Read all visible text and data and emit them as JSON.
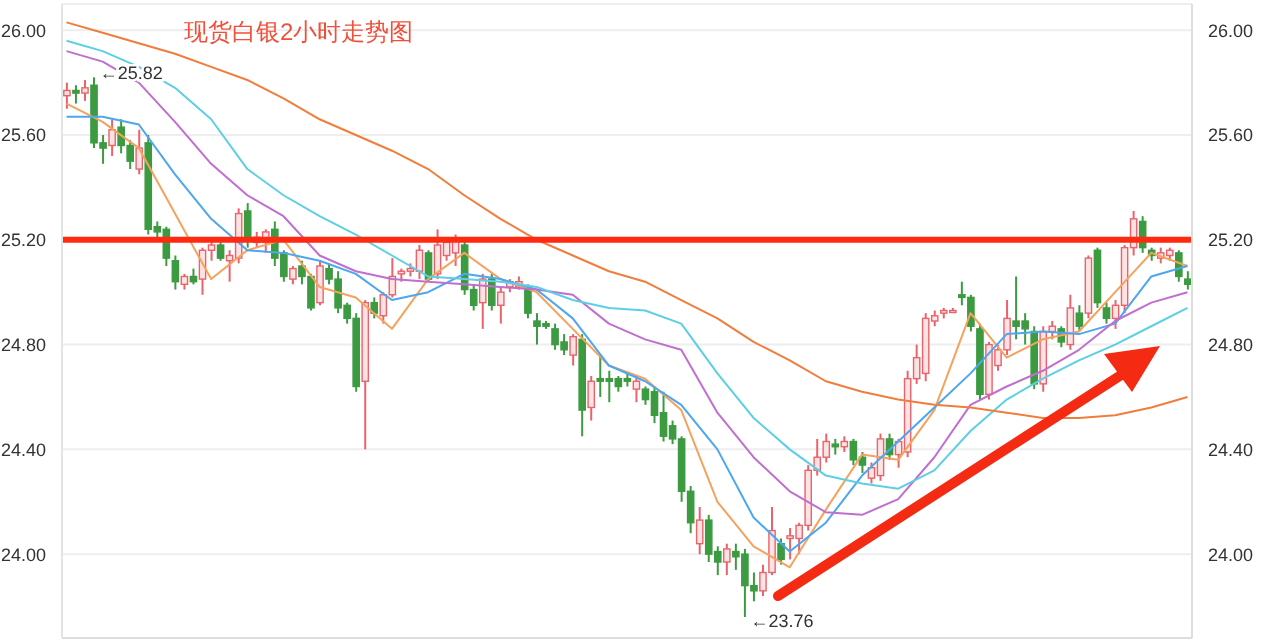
{
  "chart_data": {
    "type": "candlestick",
    "title": "现货白银2小时走势图",
    "categories": [
      null,
      null,
      null,
      null,
      null,
      null,
      null,
      null,
      null,
      null,
      null,
      null,
      null,
      null,
      null,
      null,
      null,
      null,
      null,
      null,
      null,
      null,
      null,
      null,
      null,
      null,
      null,
      null,
      null,
      null,
      null,
      null,
      null,
      null,
      null,
      null,
      null,
      null,
      null,
      null,
      null,
      null,
      null,
      null,
      null,
      null,
      null,
      null,
      null,
      null,
      null,
      null,
      null,
      null,
      null,
      null,
      null,
      null,
      null,
      null,
      null,
      null,
      null,
      null,
      null,
      null,
      null,
      null,
      null,
      null,
      null,
      null,
      null,
      null,
      null,
      null,
      null,
      null,
      null,
      null,
      null,
      null,
      null,
      null,
      null,
      null,
      null,
      null,
      null,
      null,
      null,
      null,
      null,
      null,
      null,
      null,
      null,
      null,
      null,
      null,
      null,
      null,
      null,
      null,
      null,
      null,
      null,
      null,
      null,
      null,
      null,
      null,
      null,
      null,
      null,
      null,
      null,
      null,
      null,
      null,
      null,
      null,
      null,
      null,
      null
    ],
    "ohlc": [
      [
        25.75,
        25.8,
        25.7,
        25.77
      ],
      [
        25.77,
        25.79,
        25.72,
        25.76
      ],
      [
        25.76,
        25.81,
        25.73,
        25.78
      ],
      [
        25.79,
        25.82,
        25.55,
        25.57
      ],
      [
        25.57,
        25.6,
        25.49,
        25.55
      ],
      [
        25.56,
        25.66,
        25.52,
        25.62
      ],
      [
        25.63,
        25.66,
        25.53,
        25.56
      ],
      [
        25.56,
        25.58,
        25.47,
        25.5
      ],
      [
        25.47,
        25.62,
        25.45,
        25.55
      ],
      [
        25.57,
        25.6,
        25.22,
        25.24
      ],
      [
        25.25,
        25.27,
        25.2,
        25.23
      ],
      [
        25.24,
        25.25,
        25.1,
        25.13
      ],
      [
        25.12,
        25.14,
        25.01,
        25.04
      ],
      [
        25.03,
        25.07,
        25.01,
        25.06
      ],
      [
        25.06,
        25.09,
        25.03,
        25.04
      ],
      [
        25.05,
        25.17,
        24.99,
        25.16
      ],
      [
        25.16,
        25.21,
        25.12,
        25.18
      ],
      [
        25.18,
        25.19,
        25.12,
        25.13
      ],
      [
        25.12,
        25.16,
        25.04,
        25.14
      ],
      [
        25.13,
        25.32,
        25.11,
        25.3
      ],
      [
        25.31,
        25.34,
        25.17,
        25.21
      ],
      [
        25.19,
        25.23,
        25.17,
        25.21
      ],
      [
        25.19,
        25.24,
        25.15,
        25.23
      ],
      [
        25.24,
        25.27,
        25.1,
        25.13
      ],
      [
        25.15,
        25.16,
        25.04,
        25.06
      ],
      [
        25.05,
        25.1,
        25.03,
        25.09
      ],
      [
        25.1,
        25.12,
        25.03,
        25.06
      ],
      [
        25.06,
        25.07,
        24.93,
        24.94
      ],
      [
        24.96,
        25.12,
        24.95,
        25.1
      ],
      [
        25.09,
        25.11,
        25.03,
        25.05
      ],
      [
        25.05,
        25.08,
        24.92,
        24.94
      ],
      [
        24.95,
        24.96,
        24.88,
        24.9
      ],
      [
        24.9,
        24.92,
        24.62,
        24.64
      ],
      [
        24.66,
        24.97,
        24.4,
        24.96
      ],
      [
        24.96,
        24.98,
        24.9,
        24.92
      ],
      [
        24.91,
        25.0,
        24.88,
        24.99
      ],
      [
        24.99,
        25.13,
        24.98,
        25.06
      ],
      [
        25.07,
        25.09,
        25.04,
        25.08
      ],
      [
        25.08,
        25.11,
        25.06,
        25.09
      ],
      [
        25.08,
        25.18,
        25.05,
        25.16
      ],
      [
        25.15,
        25.16,
        25.04,
        25.05
      ],
      [
        25.07,
        25.24,
        25.05,
        25.18
      ],
      [
        25.14,
        25.2,
        25.12,
        25.19
      ],
      [
        25.15,
        25.22,
        25.1,
        25.2
      ],
      [
        25.18,
        25.2,
        24.99,
        25.01
      ],
      [
        25.01,
        25.03,
        24.93,
        24.95
      ],
      [
        24.96,
        25.07,
        24.86,
        25.05
      ],
      [
        25.05,
        25.07,
        24.93,
        24.95
      ],
      [
        24.95,
        25.02,
        24.88,
        25.0
      ],
      [
        25.02,
        25.05,
        25.0,
        25.04
      ],
      [
        25.02,
        25.06,
        25.01,
        25.04
      ],
      [
        25.01,
        25.03,
        24.9,
        24.92
      ],
      [
        24.89,
        24.92,
        24.8,
        24.87
      ],
      [
        24.88,
        24.89,
        24.86,
        24.87
      ],
      [
        24.86,
        24.88,
        24.78,
        24.8
      ],
      [
        24.81,
        24.84,
        24.76,
        24.78
      ],
      [
        24.76,
        24.84,
        24.72,
        24.83
      ],
      [
        24.82,
        24.84,
        24.45,
        24.55
      ],
      [
        24.56,
        24.68,
        24.51,
        24.66
      ],
      [
        24.67,
        24.76,
        24.6,
        24.66
      ],
      [
        24.67,
        24.7,
        24.58,
        24.66
      ],
      [
        24.67,
        24.68,
        24.62,
        24.64
      ],
      [
        24.67,
        24.69,
        24.64,
        24.66
      ],
      [
        24.63,
        24.68,
        24.58,
        24.66
      ],
      [
        24.63,
        24.64,
        24.57,
        24.59
      ],
      [
        24.62,
        24.64,
        24.5,
        24.53
      ],
      [
        24.54,
        24.62,
        24.43,
        24.45
      ],
      [
        24.49,
        24.51,
        24.42,
        24.44
      ],
      [
        24.44,
        24.45,
        24.2,
        24.24
      ],
      [
        24.24,
        24.26,
        24.08,
        24.12
      ],
      [
        24.04,
        24.18,
        24.0,
        24.13
      ],
      [
        24.13,
        24.15,
        23.97,
        24.0
      ],
      [
        24.01,
        24.03,
        23.92,
        23.97
      ],
      [
        23.97,
        24.04,
        23.92,
        24.02
      ],
      [
        24.01,
        24.04,
        23.94,
        23.99
      ],
      [
        24.0,
        24.02,
        23.76,
        23.88
      ],
      [
        23.88,
        23.93,
        23.82,
        23.86
      ],
      [
        23.86,
        23.96,
        23.84,
        23.93
      ],
      [
        23.93,
        24.18,
        23.92,
        24.09
      ],
      [
        24.04,
        24.06,
        23.96,
        23.98
      ],
      [
        24.06,
        24.1,
        23.98,
        24.07
      ],
      [
        24.06,
        24.12,
        24.0,
        24.11
      ],
      [
        24.11,
        24.34,
        24.09,
        24.32
      ],
      [
        24.32,
        24.44,
        24.3,
        24.37
      ],
      [
        24.37,
        24.46,
        24.35,
        24.43
      ],
      [
        24.42,
        24.44,
        24.38,
        24.41
      ],
      [
        24.41,
        24.45,
        24.39,
        24.43
      ],
      [
        24.43,
        24.44,
        24.34,
        24.36
      ],
      [
        24.37,
        24.39,
        24.31,
        24.34
      ],
      [
        24.29,
        24.35,
        24.27,
        24.33
      ],
      [
        24.3,
        24.46,
        24.28,
        24.44
      ],
      [
        24.44,
        24.46,
        24.36,
        24.38
      ],
      [
        24.38,
        24.44,
        24.33,
        24.43
      ],
      [
        24.39,
        24.7,
        24.37,
        24.67
      ],
      [
        24.67,
        24.8,
        24.65,
        24.75
      ],
      [
        24.69,
        24.92,
        24.66,
        24.9
      ],
      [
        24.89,
        24.93,
        24.87,
        24.91
      ],
      [
        24.92,
        24.94,
        24.9,
        24.93
      ],
      [
        24.93,
        24.94,
        24.93,
        24.93
      ],
      [
        24.99,
        25.04,
        24.95,
        24.98
      ],
      [
        24.98,
        24.99,
        24.85,
        24.87
      ],
      [
        24.86,
        24.88,
        24.59,
        24.61
      ],
      [
        24.61,
        24.81,
        24.59,
        24.8
      ],
      [
        24.72,
        24.8,
        24.7,
        24.78
      ],
      [
        24.78,
        24.97,
        24.76,
        24.9
      ],
      [
        24.89,
        25.06,
        24.82,
        24.87
      ],
      [
        24.89,
        24.92,
        24.8,
        24.86
      ],
      [
        24.85,
        24.87,
        24.63,
        24.65
      ],
      [
        24.65,
        24.87,
        24.62,
        24.85
      ],
      [
        24.85,
        24.89,
        24.82,
        24.87
      ],
      [
        24.86,
        24.87,
        24.79,
        24.81
      ],
      [
        24.8,
        24.99,
        24.78,
        24.94
      ],
      [
        24.92,
        24.95,
        24.85,
        24.87
      ],
      [
        24.92,
        25.14,
        24.9,
        25.13
      ],
      [
        25.16,
        25.17,
        24.94,
        24.96
      ],
      [
        24.94,
        24.96,
        24.88,
        24.9
      ],
      [
        24.9,
        24.97,
        24.86,
        24.95
      ],
      [
        24.95,
        25.18,
        24.92,
        25.17
      ],
      [
        25.17,
        25.31,
        25.14,
        25.28
      ],
      [
        25.27,
        25.29,
        25.15,
        25.17
      ],
      [
        25.16,
        25.17,
        25.12,
        25.14
      ],
      [
        25.13,
        25.17,
        25.11,
        25.15
      ],
      [
        25.14,
        25.17,
        25.12,
        25.16
      ],
      [
        25.15,
        25.16,
        25.04,
        25.06
      ],
      [
        25.05,
        25.08,
        25.01,
        25.03
      ]
    ],
    "series": [
      {
        "type": "line",
        "color": "#f5a25d",
        "values": [
          25.72,
          null,
          null,
          null,
          25.65,
          null,
          null,
          null,
          25.55,
          null,
          null,
          null,
          25.3,
          null,
          null,
          null,
          25.05,
          null,
          null,
          null,
          25.16,
          null,
          null,
          null,
          25.2,
          null,
          null,
          null,
          25.02,
          null,
          null,
          null,
          24.98,
          null,
          null,
          null,
          24.86,
          null,
          null,
          null,
          25.05,
          null,
          null,
          null,
          25.15,
          null,
          null,
          null,
          25.05,
          null,
          null,
          null,
          25.0,
          null,
          null,
          null,
          24.86,
          null,
          null,
          null,
          24.72,
          null,
          null,
          null,
          24.67,
          null,
          null,
          null,
          24.55,
          null,
          null,
          null,
          24.2,
          null,
          null,
          null,
          24.03,
          null,
          null,
          null,
          23.95,
          null,
          null,
          null,
          24.17,
          null,
          null,
          null,
          24.38,
          null,
          null,
          null,
          24.36,
          null,
          null,
          null,
          24.55,
          null,
          null,
          null,
          24.92,
          null,
          null,
          null,
          24.75,
          null,
          null,
          null,
          24.82,
          null,
          null,
          null,
          24.85,
          null,
          null,
          null,
          25.0,
          null,
          null,
          null,
          25.15,
          null,
          null,
          null,
          25.1
        ]
      },
      {
        "type": "line",
        "color": "#4da6f0",
        "values": [
          25.67,
          null,
          null,
          null,
          25.67,
          null,
          null,
          null,
          25.64,
          null,
          null,
          null,
          25.45,
          null,
          null,
          null,
          25.28,
          null,
          null,
          null,
          25.16,
          null,
          null,
          null,
          25.15,
          null,
          null,
          null,
          25.12,
          null,
          null,
          null,
          25.07,
          null,
          null,
          null,
          24.97,
          null,
          null,
          null,
          25.0,
          null,
          null,
          null,
          25.07,
          null,
          null,
          null,
          25.05,
          null,
          null,
          null,
          25.01,
          null,
          null,
          null,
          24.9,
          null,
          null,
          null,
          24.72,
          null,
          null,
          null,
          24.66,
          null,
          null,
          null,
          24.57,
          null,
          null,
          null,
          24.4,
          null,
          null,
          null,
          24.14,
          null,
          null,
          null,
          24.01,
          null,
          null,
          null,
          24.12,
          null,
          null,
          null,
          24.3,
          null,
          null,
          null,
          24.43,
          null,
          null,
          null,
          24.56,
          null,
          null,
          null,
          24.69,
          null,
          null,
          null,
          24.84,
          null,
          null,
          null,
          24.85,
          null,
          null,
          null,
          24.84,
          null,
          null,
          null,
          24.88,
          null,
          null,
          null,
          25.06,
          null,
          null,
          null,
          25.1
        ]
      },
      {
        "type": "line",
        "color": "#c06ed0",
        "values": [
          25.92,
          null,
          null,
          null,
          25.88,
          null,
          null,
          null,
          25.8,
          null,
          null,
          null,
          25.65,
          null,
          null,
          null,
          25.49,
          null,
          null,
          null,
          25.37,
          null,
          null,
          null,
          25.29,
          null,
          null,
          null,
          25.14,
          null,
          null,
          null,
          25.08,
          null,
          null,
          null,
          25.05,
          null,
          null,
          null,
          25.04,
          null,
          null,
          null,
          25.03,
          null,
          null,
          null,
          25.02,
          null,
          null,
          null,
          25.01,
          null,
          null,
          null,
          24.99,
          null,
          null,
          null,
          24.88,
          null,
          null,
          null,
          24.82,
          null,
          null,
          null,
          24.78,
          null,
          null,
          null,
          24.54,
          null,
          null,
          null,
          24.37,
          null,
          null,
          null,
          24.24,
          null,
          null,
          null,
          24.16,
          null,
          null,
          null,
          24.15,
          null,
          null,
          null,
          24.21,
          null,
          null,
          null,
          24.37,
          null,
          null,
          null,
          24.57,
          null,
          null,
          null,
          24.64,
          null,
          null,
          null,
          24.7,
          null,
          null,
          null,
          24.78,
          null,
          null,
          null,
          24.89,
          null,
          null,
          null,
          24.96,
          null,
          null,
          null,
          25.0
        ]
      },
      {
        "type": "line",
        "color": "#5ccfe6",
        "values": [
          25.96,
          null,
          null,
          null,
          25.92,
          null,
          null,
          null,
          25.86,
          null,
          null,
          null,
          25.78,
          null,
          null,
          null,
          25.66,
          null,
          null,
          null,
          25.47,
          null,
          null,
          null,
          25.37,
          null,
          null,
          null,
          25.29,
          null,
          null,
          null,
          25.22,
          null,
          null,
          null,
          25.14,
          null,
          null,
          null,
          25.06,
          null,
          null,
          null,
          25.05,
          null,
          null,
          null,
          25.04,
          null,
          null,
          null,
          25.02,
          null,
          null,
          null,
          24.97,
          null,
          null,
          null,
          24.94,
          null,
          null,
          null,
          24.93,
          null,
          null,
          null,
          24.88,
          null,
          null,
          null,
          24.69,
          null,
          null,
          null,
          24.52,
          null,
          null,
          null,
          24.4,
          null,
          null,
          null,
          24.3,
          null,
          null,
          null,
          24.27,
          null,
          null,
          null,
          24.25,
          null,
          null,
          null,
          24.32,
          null,
          null,
          null,
          24.47,
          null,
          null,
          null,
          24.59,
          null,
          null,
          null,
          24.67,
          null,
          null,
          null,
          24.74,
          null,
          null,
          null,
          24.8,
          null,
          null,
          null,
          24.87,
          null,
          null,
          null,
          24.94
        ]
      },
      {
        "type": "line",
        "color": "#f07d3c",
        "values": [
          26.03,
          null,
          null,
          null,
          25.99,
          null,
          null,
          null,
          25.95,
          null,
          null,
          null,
          25.91,
          null,
          null,
          null,
          25.86,
          null,
          null,
          null,
          25.81,
          null,
          null,
          null,
          25.74,
          null,
          null,
          null,
          25.66,
          null,
          null,
          null,
          25.6,
          null,
          null,
          null,
          25.54,
          null,
          null,
          null,
          25.47,
          null,
          null,
          null,
          25.37,
          null,
          null,
          null,
          25.28,
          null,
          null,
          null,
          25.2,
          null,
          null,
          null,
          25.14,
          null,
          null,
          null,
          25.08,
          null,
          null,
          null,
          25.04,
          null,
          null,
          null,
          24.97,
          null,
          null,
          null,
          24.9,
          null,
          null,
          null,
          24.81,
          null,
          null,
          null,
          24.74,
          null,
          null,
          null,
          24.66,
          null,
          null,
          null,
          24.62,
          null,
          null,
          null,
          24.59,
          null,
          null,
          null,
          24.57,
          null,
          null,
          null,
          24.56,
          null,
          null,
          null,
          24.54,
          null,
          null,
          null,
          24.52,
          null,
          null,
          null,
          24.52,
          null,
          null,
          null,
          24.53,
          null,
          null,
          null,
          24.56,
          null,
          null,
          null,
          24.6
        ]
      }
    ],
    "ylim": [
      23.68,
      26.1
    ],
    "yticks": [
      {
        "value": 24,
        "label": "24.00"
      },
      {
        "value": 24.4,
        "label": "24.40"
      },
      {
        "value": 24.8,
        "label": "24.80"
      },
      {
        "value": 25.2,
        "label": "25.20"
      },
      {
        "value": 25.6,
        "label": "25.60"
      },
      {
        "value": 26,
        "label": "26.00"
      }
    ],
    "y2lim": [
      23.68,
      26.1
    ],
    "y2ticks": [
      {
        "value": 24,
        "label": "24.00"
      },
      {
        "value": 24.4,
        "label": "24.40"
      },
      {
        "value": 24.8,
        "label": "24.80"
      },
      {
        "value": 25.2,
        "label": "25.20"
      },
      {
        "value": 25.6,
        "label": "25.60"
      },
      {
        "value": 26,
        "label": "26.00"
      }
    ],
    "tick_labels": "y",
    "grid": "y",
    "ref_lines": [
      {
        "axis": "y",
        "value": 25.2,
        "color": "#ff2a10"
      }
    ],
    "annotations": [
      "←25.82",
      "←23.76"
    ]
  }
}
